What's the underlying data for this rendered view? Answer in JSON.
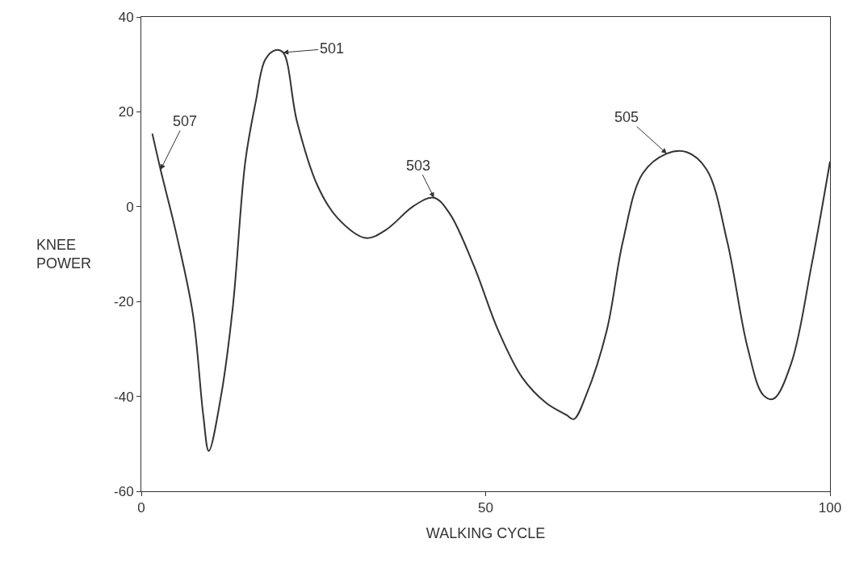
{
  "chart_data": {
    "type": "line",
    "xlabel": "WALKING CYCLE",
    "ylabel": "KNEE\nPOWER",
    "x": [
      1.6,
      2.8,
      5.1,
      7.5,
      9.0,
      9.8,
      11.6,
      13.3,
      15.1,
      16.6,
      18.0,
      19.5,
      20.6,
      22.6,
      25.6,
      28.5,
      32.6,
      35.5,
      39.6,
      42.5,
      44.8,
      48.3,
      51.8,
      55.3,
      58.8,
      61.7,
      62.8,
      64.6,
      67.6,
      69.9,
      72.8,
      76.3,
      79.2,
      82.1,
      85.1,
      88.0,
      90.3,
      91.8,
      94.4,
      97.3,
      100
    ],
    "series": [
      {
        "color": "#333333",
        "values": [
          15.4,
          7.8,
          -5.8,
          -22.7,
          -44,
          -51.5,
          -39.7,
          -21,
          9.5,
          22,
          31,
          33,
          32.5,
          18,
          4.4,
          -2.4,
          -6.6,
          -4.9,
          0.2,
          1.9,
          -1.5,
          -12.5,
          -26,
          -36,
          -41.4,
          -43.9,
          -44.8,
          -39.7,
          -26,
          -7.5,
          7,
          11.2,
          11.5,
          7.8,
          -7.5,
          -29.5,
          -39.7,
          -40.5,
          -32.9,
          -12.5,
          9.5
        ]
      }
    ],
    "xlim": [
      0,
      100
    ],
    "xticks": [
      0,
      50,
      100
    ],
    "ylim": [
      -60,
      40
    ],
    "yticks": [
      -60,
      -40,
      -20,
      0,
      20,
      40
    ],
    "line_style": "solid",
    "annotations": [
      {
        "text": "501",
        "x": 20.6,
        "y": 32.5
      },
      {
        "text": "503",
        "x": 42.5,
        "y": 1.9
      },
      {
        "text": "505",
        "x": 76.3,
        "y": 11.2
      },
      {
        "text": "507",
        "x": 2.8,
        "y": 7.8
      }
    ]
  }
}
